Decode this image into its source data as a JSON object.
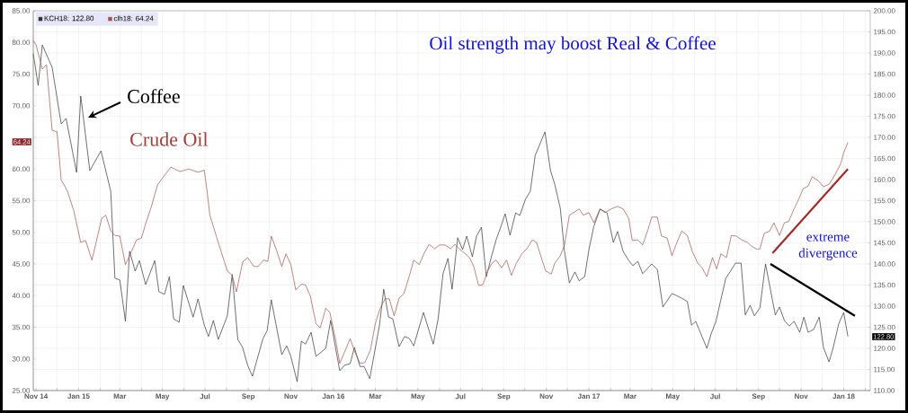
{
  "chart_data": {
    "type": "line",
    "title": "Oil strength may boost Real & Coffee",
    "annotations": [
      "Coffee",
      "Crude Oil",
      "extreme divergence",
      "64.24",
      "122.80"
    ],
    "xlim": [
      "2014-10-28",
      "2018-02-08"
    ],
    "xticks": [
      {
        "value": "2014-11-01",
        "label": "Nov 14"
      },
      {
        "value": "2014-12-01",
        "label": null
      },
      {
        "value": "2015-01-01",
        "label": "Jan 15"
      },
      {
        "value": "2015-02-01",
        "label": null
      },
      {
        "value": "2015-03-01",
        "label": "Mar"
      },
      {
        "value": "2015-04-01",
        "label": null
      },
      {
        "value": "2015-05-01",
        "label": "May"
      },
      {
        "value": "2015-06-01",
        "label": null
      },
      {
        "value": "2015-07-01",
        "label": "Jul"
      },
      {
        "value": "2015-08-01",
        "label": null
      },
      {
        "value": "2015-09-01",
        "label": "Sep"
      },
      {
        "value": "2015-10-01",
        "label": null
      },
      {
        "value": "2015-11-01",
        "label": "Nov"
      },
      {
        "value": "2015-12-01",
        "label": null
      },
      {
        "value": "2016-01-01",
        "label": "Jan 16"
      },
      {
        "value": "2016-02-01",
        "label": null
      },
      {
        "value": "2016-03-01",
        "label": "Mar"
      },
      {
        "value": "2016-04-01",
        "label": null
      },
      {
        "value": "2016-05-01",
        "label": "May"
      },
      {
        "value": "2016-06-01",
        "label": null
      },
      {
        "value": "2016-07-01",
        "label": "Jul"
      },
      {
        "value": "2016-08-01",
        "label": null
      },
      {
        "value": "2016-09-01",
        "label": "Sep"
      },
      {
        "value": "2016-10-01",
        "label": null
      },
      {
        "value": "2016-11-01",
        "label": "Nov"
      },
      {
        "value": "2016-12-01",
        "label": null
      },
      {
        "value": "2017-01-01",
        "label": "Jan 17"
      },
      {
        "value": "2017-02-01",
        "label": null
      },
      {
        "value": "2017-03-01",
        "label": "Mar"
      },
      {
        "value": "2017-04-01",
        "label": null
      },
      {
        "value": "2017-05-01",
        "label": "May"
      },
      {
        "value": "2017-06-01",
        "label": null
      },
      {
        "value": "2017-07-01",
        "label": "Jul"
      },
      {
        "value": "2017-08-01",
        "label": null
      },
      {
        "value": "2017-09-01",
        "label": "Sep"
      },
      {
        "value": "2017-10-01",
        "label": null
      },
      {
        "value": "2017-11-01",
        "label": "Nov"
      },
      {
        "value": "2017-12-01",
        "label": null
      },
      {
        "value": "2018-01-01",
        "label": "Jan 18"
      },
      {
        "value": "2018-02-01",
        "label": null
      }
    ],
    "ylim": [
      25,
      85
    ],
    "yticks": [
      {
        "value": 25,
        "label": "25.00"
      },
      {
        "value": 30,
        "label": "30.00"
      },
      {
        "value": 35,
        "label": "35.00"
      },
      {
        "value": 40,
        "label": "40.00"
      },
      {
        "value": 45,
        "label": "45.00"
      },
      {
        "value": 50,
        "label": "50.00"
      },
      {
        "value": 55,
        "label": "55.00"
      },
      {
        "value": 60,
        "label": "60.00"
      },
      {
        "value": 65,
        "label": null
      },
      {
        "value": 70,
        "label": "70.00"
      },
      {
        "value": 75,
        "label": "75.00"
      },
      {
        "value": 80,
        "label": "80.00"
      },
      {
        "value": 85,
        "label": "85.00"
      }
    ],
    "y2lim": [
      110,
      200
    ],
    "y2ticks": [
      {
        "value": 110,
        "label": "110.00"
      },
      {
        "value": 115,
        "label": "115.00"
      },
      {
        "value": 120,
        "label": "120.00"
      },
      {
        "value": 125,
        "label": "125.00"
      },
      {
        "value": 130,
        "label": "130.00"
      },
      {
        "value": 135,
        "label": "135.00"
      },
      {
        "value": 140,
        "label": "140.00"
      },
      {
        "value": 145,
        "label": "145.00"
      },
      {
        "value": 150,
        "label": "150.00"
      },
      {
        "value": 155,
        "label": "155.00"
      },
      {
        "value": 160,
        "label": "160.00"
      },
      {
        "value": 165,
        "label": "165.00"
      },
      {
        "value": 170,
        "label": "170.00"
      },
      {
        "value": 175,
        "label": "175.00"
      },
      {
        "value": 180,
        "label": "180.00"
      },
      {
        "value": 185,
        "label": "185.00"
      },
      {
        "value": 190,
        "label": "190.00"
      },
      {
        "value": 195,
        "label": "195.00"
      },
      {
        "value": 200,
        "label": "200.00"
      }
    ],
    "grid": true,
    "legend": "top left",
    "series": [
      {
        "name": "KCH18: 122.80",
        "color": "#333333",
        "axis": "y2",
        "x": [
          "2014-10-28",
          "2014-11-04",
          "2014-11-10",
          "2014-11-24",
          "2014-12-07",
          "2014-12-14",
          "2014-12-29",
          "2015-01-04",
          "2015-01-17",
          "2015-02-02",
          "2015-02-16",
          "2015-02-22",
          "2015-03-01",
          "2015-03-09",
          "2015-03-15",
          "2015-03-23",
          "2015-03-29",
          "2015-04-07",
          "2015-04-20",
          "2015-04-26",
          "2015-05-04",
          "2015-05-11",
          "2015-05-17",
          "2015-05-25",
          "2015-05-31",
          "2015-06-14",
          "2015-06-21",
          "2015-06-30",
          "2015-07-06",
          "2015-07-13",
          "2015-07-20",
          "2015-08-02",
          "2015-08-09",
          "2015-08-17",
          "2015-08-24",
          "2015-08-31",
          "2015-09-07",
          "2015-09-22",
          "2015-09-28",
          "2015-10-04",
          "2015-10-19",
          "2015-10-26",
          "2015-11-01",
          "2015-11-10",
          "2015-11-16",
          "2015-11-22",
          "2015-11-30",
          "2015-12-07",
          "2015-12-21",
          "2015-12-28",
          "2016-01-10",
          "2016-01-17",
          "2016-01-25",
          "2016-01-31",
          "2016-02-08",
          "2016-02-14",
          "2016-02-22",
          "2016-03-07",
          "2016-03-13",
          "2016-03-20",
          "2016-03-26",
          "2016-04-04",
          "2016-04-12",
          "2016-04-19",
          "2016-04-25",
          "2016-05-09",
          "2016-05-23",
          "2016-05-30",
          "2016-06-06",
          "2016-06-13",
          "2016-06-19",
          "2016-06-27",
          "2016-07-04",
          "2016-07-10",
          "2016-07-18",
          "2016-07-24",
          "2016-07-31",
          "2016-08-07",
          "2016-08-14",
          "2016-08-21",
          "2016-08-28",
          "2016-09-03",
          "2016-09-10",
          "2016-09-18",
          "2016-09-24",
          "2016-10-02",
          "2016-10-09",
          "2016-10-16",
          "2016-10-24",
          "2016-10-30",
          "2016-11-07",
          "2016-11-13",
          "2016-11-21",
          "2016-11-27",
          "2016-12-04",
          "2016-12-12",
          "2016-12-18",
          "2016-12-26",
          "2017-01-01",
          "2017-01-08",
          "2017-01-17",
          "2017-01-27",
          "2017-02-05",
          "2017-02-11",
          "2017-02-19",
          "2017-02-27",
          "2017-03-05",
          "2017-03-12",
          "2017-03-19",
          "2017-04-01",
          "2017-04-09",
          "2017-04-17",
          "2017-04-30",
          "2017-05-14",
          "2017-05-22",
          "2017-05-28",
          "2017-06-03",
          "2017-06-19",
          "2017-06-25",
          "2017-07-02",
          "2017-07-16",
          "2017-07-22",
          "2017-07-30",
          "2017-08-07",
          "2017-08-13",
          "2017-08-20",
          "2017-08-26",
          "2017-09-03",
          "2017-09-11",
          "2017-09-25",
          "2017-10-01",
          "2017-10-08",
          "2017-10-15",
          "2017-10-22",
          "2017-10-30",
          "2017-11-05",
          "2017-11-11",
          "2017-11-19",
          "2017-11-27",
          "2017-12-03",
          "2017-12-11",
          "2017-12-17",
          "2017-12-25",
          "2018-01-01",
          "2018-01-07"
        ],
        "values": [
          189.8,
          182.3,
          191.9,
          186.6,
          173.2,
          174.5,
          161.7,
          179.8,
          162.1,
          166.8,
          157.2,
          136.6,
          136.2,
          126.4,
          143.0,
          138.3,
          140.8,
          135.1,
          140.8,
          133.4,
          132.8,
          137.0,
          127.0,
          126.2,
          134.9,
          127.4,
          131.7,
          125.5,
          122.8,
          126.6,
          122.1,
          127.7,
          137.5,
          122.1,
          120.2,
          116.0,
          113.4,
          122.3,
          124.2,
          131.5,
          118.5,
          120.6,
          118.1,
          112.1,
          121.7,
          121.0,
          123.8,
          118.1,
          120.0,
          126.6,
          114.7,
          116.0,
          116.4,
          120.2,
          115.7,
          115.7,
          112.8,
          125.5,
          134.0,
          127.4,
          127.0,
          120.4,
          122.8,
          122.3,
          120.6,
          128.5,
          121.0,
          127.0,
          137.7,
          141.3,
          134.0,
          146.2,
          143.4,
          146.6,
          141.7,
          146.6,
          148.7,
          137.0,
          141.5,
          145.7,
          148.9,
          151.9,
          146.8,
          152.1,
          151.5,
          155.3,
          157.2,
          165.7,
          168.9,
          171.3,
          162.1,
          158.9,
          153.2,
          143.0,
          135.5,
          138.1,
          136.0,
          137.0,
          143.4,
          148.9,
          153.0,
          152.1,
          145.1,
          147.7,
          143.0,
          140.8,
          139.6,
          140.6,
          137.7,
          140.0,
          138.7,
          129.8,
          133.0,
          131.9,
          131.1,
          125.5,
          126.4,
          120.0,
          123.4,
          126.4,
          136.6,
          138.1,
          140.2,
          140.2,
          127.9,
          130.2,
          127.7,
          129.6,
          140.0,
          127.9,
          129.8,
          126.6,
          125.3,
          126.4,
          123.8,
          127.4,
          123.8,
          124.5,
          127.4,
          120.2,
          116.8,
          120.2,
          125.9,
          128.5,
          122.8
        ],
        "value_labels": [
          null,
          null,
          null,
          null,
          null,
          null,
          null,
          null,
          null,
          null,
          null,
          null,
          null,
          null,
          null,
          null,
          null,
          null,
          null,
          null,
          null,
          null,
          null,
          null,
          null,
          null,
          null,
          null,
          null,
          null,
          null,
          null,
          null,
          null,
          null,
          null,
          null,
          null,
          null,
          null,
          null,
          null,
          null,
          null,
          null,
          null,
          null,
          null,
          null,
          null,
          null,
          null,
          null,
          null,
          null,
          null,
          null,
          null,
          null,
          null,
          null,
          null,
          null,
          null,
          null,
          null,
          null,
          null,
          null,
          null,
          null,
          null,
          null,
          null,
          null,
          null,
          null,
          null,
          null,
          null,
          null,
          null,
          null,
          null,
          null,
          null,
          null,
          null,
          null,
          null,
          null,
          null,
          null,
          null,
          null,
          null,
          null,
          null,
          null,
          null,
          null,
          null,
          null,
          null,
          null,
          null,
          null,
          null,
          null,
          null,
          null,
          null,
          null,
          null,
          null,
          null,
          null,
          null,
          null,
          null,
          null,
          null,
          null,
          null,
          null,
          null,
          null,
          null,
          null,
          null,
          null,
          null,
          null,
          null,
          null,
          null,
          null,
          null,
          null,
          null,
          null,
          null,
          null,
          null,
          null
        ]
      },
      {
        "name": "clh18: 64.24",
        "color": "#a0524d",
        "x": [
          "2014-10-28",
          "2014-11-01",
          "2014-11-10",
          "2014-11-16",
          "2014-11-24",
          "2014-12-01",
          "2014-12-07",
          "2014-12-16",
          "2014-12-25",
          "2015-01-04",
          "2015-01-11",
          "2015-01-20",
          "2015-01-26",
          "2015-02-03",
          "2015-02-09",
          "2015-02-16",
          "2015-02-22",
          "2015-03-01",
          "2015-03-09",
          "2015-03-15",
          "2015-03-25",
          "2015-04-01",
          "2015-04-08",
          "2015-04-15",
          "2015-04-24",
          "2015-05-04",
          "2015-05-13",
          "2015-05-26",
          "2015-06-08",
          "2015-06-21",
          "2015-06-30",
          "2015-07-04",
          "2015-07-08",
          "2015-07-20",
          "2015-08-02",
          "2015-08-09",
          "2015-08-15",
          "2015-08-24",
          "2015-08-31",
          "2015-09-09",
          "2015-09-15",
          "2015-09-23",
          "2015-09-29",
          "2015-10-04",
          "2015-10-12",
          "2015-10-19",
          "2015-10-25",
          "2015-11-01",
          "2015-11-08",
          "2015-11-16",
          "2015-11-22",
          "2015-11-29",
          "2015-12-07",
          "2015-12-13",
          "2015-12-21",
          "2015-12-27",
          "2016-01-04",
          "2016-01-10",
          "2016-01-17",
          "2016-01-25",
          "2016-02-01",
          "2016-02-08",
          "2016-02-15",
          "2016-02-23",
          "2016-03-01",
          "2016-03-08",
          "2016-03-15",
          "2016-03-21",
          "2016-03-28",
          "2016-04-04",
          "2016-04-11",
          "2016-04-19",
          "2016-04-25",
          "2016-05-03",
          "2016-05-10",
          "2016-05-17",
          "2016-05-25",
          "2016-06-01",
          "2016-06-09",
          "2016-06-17",
          "2016-06-23",
          "2016-06-30",
          "2016-07-07",
          "2016-07-14",
          "2016-07-20",
          "2016-07-27",
          "2016-08-02",
          "2016-08-09",
          "2016-08-15",
          "2016-08-21",
          "2016-08-29",
          "2016-09-05",
          "2016-09-12",
          "2016-09-19",
          "2016-09-27",
          "2016-10-04",
          "2016-10-12",
          "2016-10-18",
          "2016-10-26",
          "2016-10-31",
          "2016-11-08",
          "2016-11-13",
          "2016-11-21",
          "2016-11-27",
          "2016-12-04",
          "2016-12-10",
          "2016-12-18",
          "2016-12-24",
          "2017-01-01",
          "2017-01-08",
          "2017-01-17",
          "2017-01-24",
          "2017-02-02",
          "2017-02-11",
          "2017-02-19",
          "2017-02-27",
          "2017-03-04",
          "2017-03-12",
          "2017-03-19",
          "2017-03-26",
          "2017-04-01",
          "2017-04-09",
          "2017-04-15",
          "2017-04-23",
          "2017-04-30",
          "2017-05-07",
          "2017-05-14",
          "2017-05-22",
          "2017-05-29",
          "2017-06-06",
          "2017-06-12",
          "2017-06-19",
          "2017-06-27",
          "2017-07-03",
          "2017-07-09",
          "2017-07-17",
          "2017-07-24",
          "2017-07-31",
          "2017-08-08",
          "2017-08-16",
          "2017-08-22",
          "2017-08-30",
          "2017-09-03",
          "2017-09-09",
          "2017-09-17",
          "2017-09-23",
          "2017-10-01",
          "2017-10-08",
          "2017-10-14",
          "2017-10-22",
          "2017-10-28",
          "2017-11-04",
          "2017-11-11",
          "2017-11-17",
          "2017-11-26",
          "2017-12-03",
          "2017-12-11",
          "2017-12-17",
          "2017-12-23",
          "2017-12-28",
          "2018-01-01",
          "2018-01-07"
        ],
        "values": [
          80.3,
          79.6,
          75.8,
          76.5,
          66.1,
          65.9,
          58.3,
          56.5,
          53.4,
          48.4,
          48.7,
          45.6,
          48.4,
          52.2,
          52.7,
          50.2,
          49.5,
          49.4,
          44.9,
          46.3,
          48.8,
          49.1,
          51.7,
          54.0,
          57.5,
          59.0,
          60.3,
          59.6,
          60.0,
          59.5,
          59.8,
          56.5,
          52.7,
          48.4,
          43.9,
          43.2,
          40.6,
          45.3,
          46.0,
          44.6,
          44.6,
          45.6,
          45.4,
          49.4,
          47.0,
          44.6,
          46.6,
          44.9,
          40.9,
          41.8,
          41.7,
          39.9,
          35.6,
          34.9,
          38.0,
          37.3,
          33.1,
          29.3,
          31.1,
          33.2,
          31.0,
          29.3,
          29.4,
          31.4,
          35.6,
          38.0,
          39.5,
          39.5,
          36.8,
          39.6,
          40.3,
          43.2,
          45.6,
          44.9,
          46.7,
          48.1,
          47.4,
          48.0,
          48.0,
          47.4,
          48.1,
          47.3,
          46.7,
          46.0,
          44.6,
          41.6,
          41.7,
          43.9,
          45.1,
          45.6,
          44.4,
          45.6,
          43.2,
          45.1,
          46.6,
          47.4,
          48.8,
          48.4,
          45.6,
          43.9,
          43.4,
          45.1,
          46.3,
          48.0,
          52.7,
          53.1,
          53.7,
          52.7,
          53.1,
          51.5,
          53.7,
          53.1,
          53.7,
          54.1,
          53.7,
          52.2,
          48.7,
          48.8,
          48.0,
          50.2,
          52.4,
          52.4,
          49.4,
          49.1,
          46.3,
          48.4,
          50.2,
          49.5,
          47.0,
          45.1,
          44.4,
          43.0,
          46.0,
          44.2,
          46.6,
          46.0,
          49.5,
          49.4,
          48.8,
          48.4,
          47.8,
          47.3,
          47.4,
          49.8,
          50.2,
          51.5,
          49.5,
          51.5,
          51.7,
          53.7,
          55.1,
          56.9,
          57.3,
          58.8,
          58.1,
          57.2,
          57.6,
          58.6,
          59.8,
          60.9,
          62.6,
          64.2
        ],
        "value_labels": [
          null,
          null,
          null,
          null,
          null,
          null,
          null,
          null,
          null,
          null,
          null,
          null,
          null,
          null,
          null,
          null,
          null,
          null,
          null,
          null,
          null,
          null,
          null,
          null,
          null,
          null,
          null,
          null,
          null,
          null,
          null,
          null,
          null,
          null,
          null,
          null,
          null,
          null,
          null,
          null,
          null,
          null,
          null,
          null,
          null,
          null,
          null,
          null,
          null,
          null,
          null,
          null,
          null,
          null,
          null,
          null,
          null,
          null,
          null,
          null,
          null,
          null,
          null,
          null,
          null,
          null,
          null,
          null,
          null,
          null,
          null,
          null,
          null,
          null,
          null,
          null,
          null,
          null,
          null,
          null,
          null,
          null,
          null,
          null,
          null,
          null,
          null,
          null,
          null,
          null,
          null,
          null,
          null,
          null,
          null,
          null,
          null,
          null,
          null,
          null,
          null,
          null,
          null,
          null,
          null,
          null,
          null,
          null,
          null,
          null,
          null,
          null,
          null,
          null,
          null,
          null,
          null,
          null,
          null,
          null,
          null,
          null,
          null,
          null,
          null,
          null,
          null,
          null,
          null,
          null,
          null,
          null,
          null,
          null,
          null,
          null,
          null,
          null,
          null,
          null,
          null,
          null,
          null,
          null,
          null,
          null,
          null,
          null,
          null,
          null,
          null,
          null,
          null,
          null,
          null,
          null,
          null,
          null,
          null,
          null,
          null,
          null
        ]
      },
      {
        "type": "line",
        "color": "#a52a2a",
        "x": [
          "2017-09-21",
          "2018-01-07"
        ],
        "values": [
          46.7,
          60.0
        ]
      },
      {
        "type": "line",
        "color": "#000000",
        "axis": "y2",
        "x": [
          "2017-09-18",
          "2018-01-17"
        ],
        "values": [
          140.0,
          127.7
        ]
      }
    ]
  }
}
